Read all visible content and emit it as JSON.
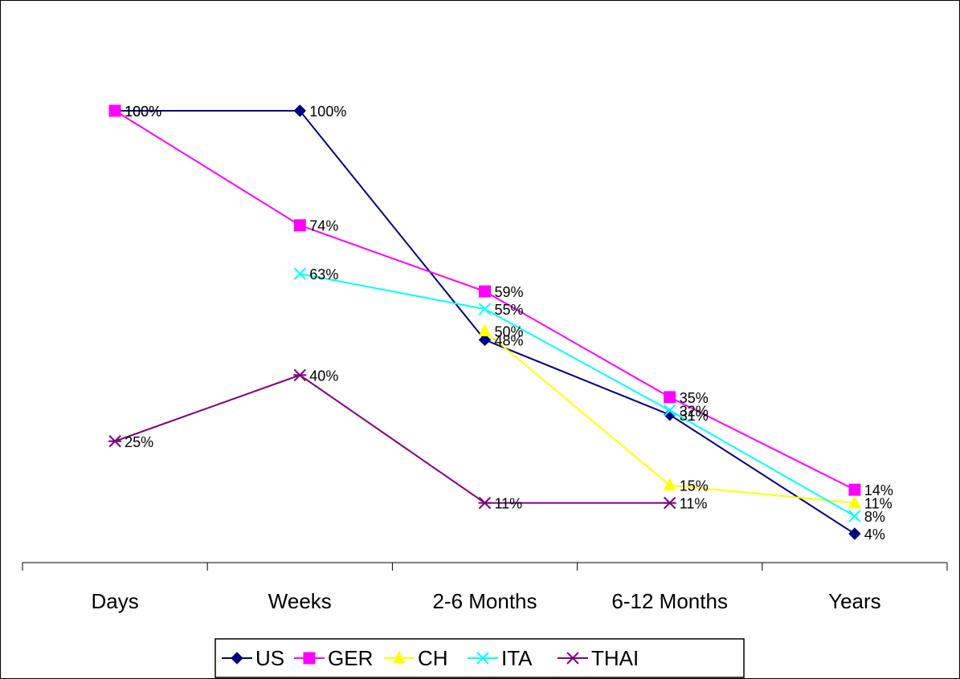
{
  "chart_data": {
    "type": "line",
    "title": "",
    "xlabel": "",
    "ylabel": "",
    "ylim": [
      0,
      100
    ],
    "grid": false,
    "legend_position": "bottom",
    "categories": [
      "Days",
      "Weeks",
      "2-6 Months",
      "6-12 Months",
      "Years"
    ],
    "series": [
      {
        "name": "US",
        "color": "#000080",
        "marker": "diamond",
        "values": [
          100,
          100,
          48,
          31,
          4
        ]
      },
      {
        "name": "GER",
        "color": "#FF00FF",
        "marker": "square",
        "values": [
          100,
          74,
          59,
          35,
          14
        ]
      },
      {
        "name": "CH",
        "color": "#FFFF00",
        "marker": "triangle",
        "values": [
          null,
          null,
          50,
          15,
          11
        ]
      },
      {
        "name": "ITA",
        "color": "#00FFFF",
        "marker": "x",
        "values": [
          null,
          63,
          55,
          32,
          8
        ]
      },
      {
        "name": "THAI",
        "color": "#800080",
        "marker": "star",
        "values": [
          25,
          40,
          11,
          11,
          null
        ]
      }
    ],
    "value_suffix": "%"
  }
}
